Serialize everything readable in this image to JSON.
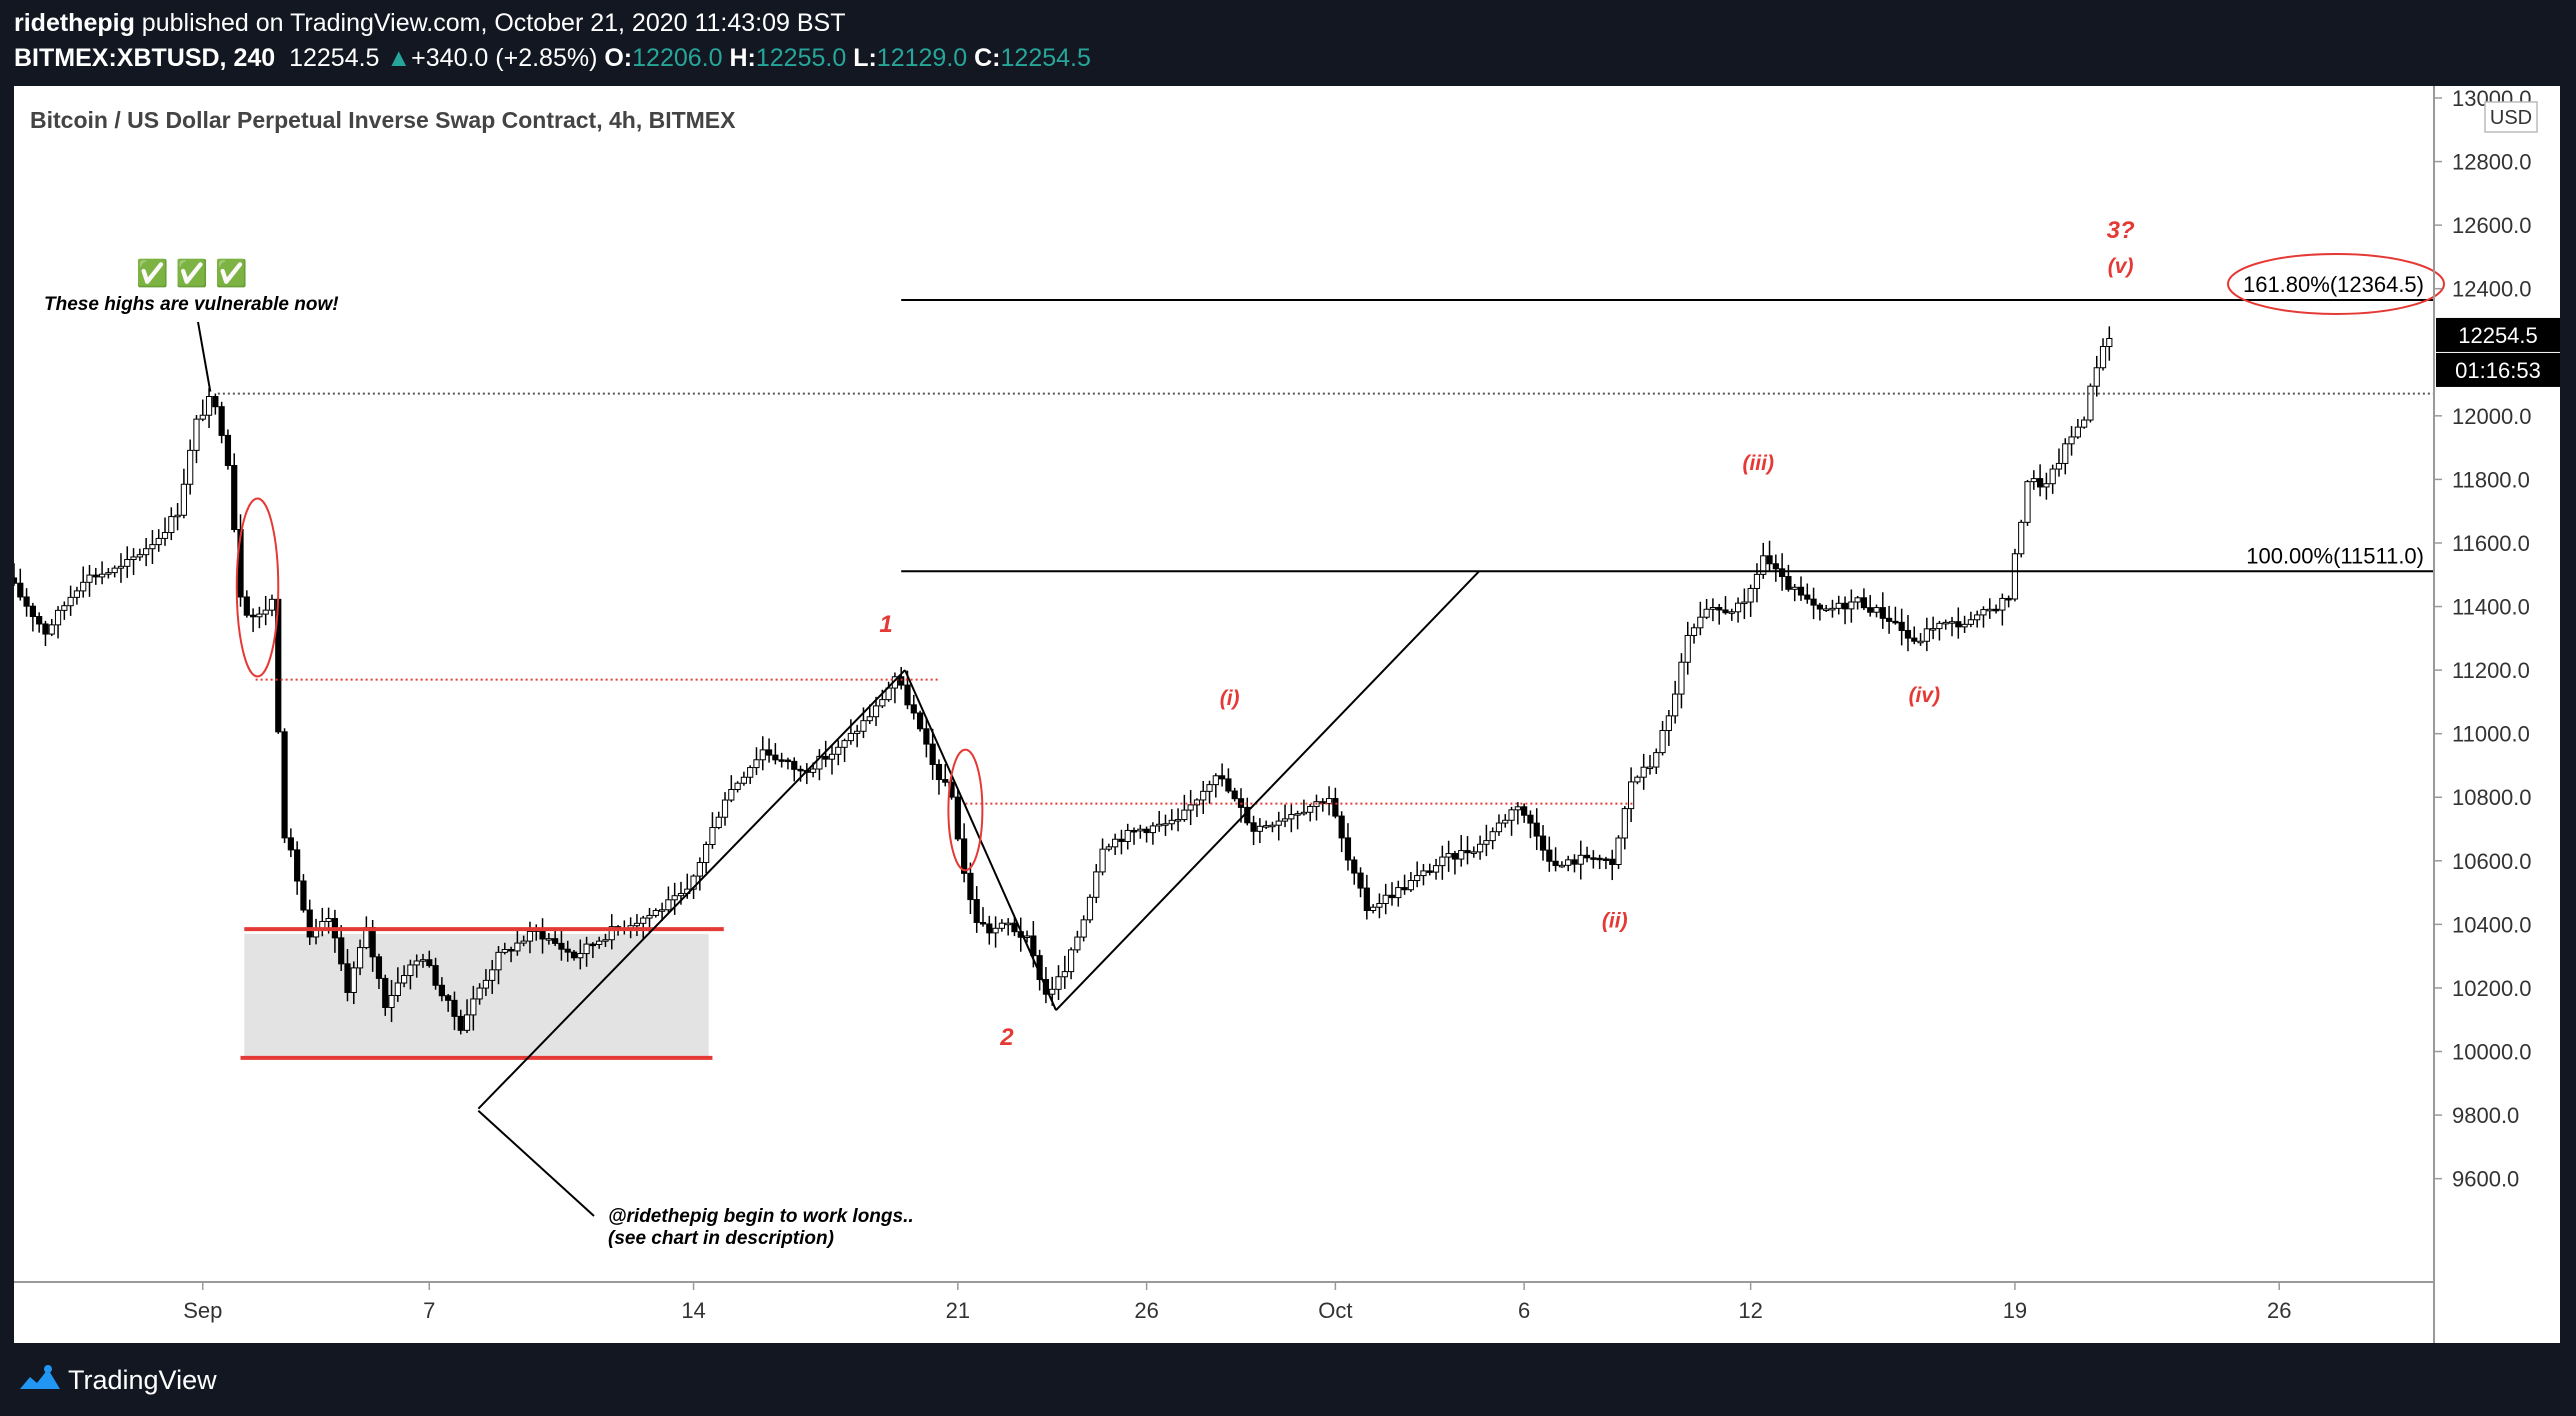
{
  "header": {
    "author": "ridethepig",
    "published_text": "published on TradingView.com, October 21, 2020 11:43:09 BST",
    "symbol": "BITMEX:XBTUSD, 240",
    "last_price": "12254.5",
    "change_arrow": "▲",
    "change": "+340.0 (+2.85%)",
    "o_label": "O:",
    "o_value": "12206.0",
    "h_label": "H:",
    "h_value": "12255.0",
    "l_label": "L:",
    "l_value": "12129.0",
    "c_label": "C:",
    "c_value": "12254.5"
  },
  "footer": {
    "brand": "TradingView"
  },
  "chart_data": {
    "type": "candlestick",
    "title": "Bitcoin / US Dollar Perpetual Inverse Swap Contract, 4h, BITMEX",
    "currency": "USD",
    "y_range": [
      9300,
      13000
    ],
    "y_ticks": [
      "13000.0",
      "12800.0",
      "12600.0",
      "12400.0",
      "12000.0",
      "11800.0",
      "11600.0",
      "11400.0",
      "11200.0",
      "11000.0",
      "10800.0",
      "10600.0",
      "10400.0",
      "10200.0",
      "10000.0",
      "9800.0",
      "9600.0"
    ],
    "x_ticks": [
      {
        "label": "Sep",
        "day": 1
      },
      {
        "label": "7",
        "day": 7
      },
      {
        "label": "14",
        "day": 14
      },
      {
        "label": "21",
        "day": 21
      },
      {
        "label": "26",
        "day": 26
      },
      {
        "label": "Oct",
        "day": 31
      },
      {
        "label": "6",
        "day": 36
      },
      {
        "label": "12",
        "day": 42
      },
      {
        "label": "19",
        "day": 49
      },
      {
        "label": "26",
        "day": 56
      }
    ],
    "x_range_days": [
      -4,
      60.1
    ],
    "price_label": "12254.5",
    "countdown": "01:16:53",
    "key_prices": [
      {
        "day": -4,
        "price": 11490
      },
      {
        "day": -3,
        "price": 11320
      },
      {
        "day": -2,
        "price": 11490
      },
      {
        "day": -1,
        "price": 11520
      },
      {
        "day": 0,
        "price": 11620
      },
      {
        "day": 0.5,
        "price": 11700
      },
      {
        "day": 1,
        "price": 11980
      },
      {
        "day": 1.4,
        "price": 12060
      },
      {
        "day": 1.8,
        "price": 11900
      },
      {
        "day": 2.2,
        "price": 11400
      },
      {
        "day": 2.6,
        "price": 11360
      },
      {
        "day": 3,
        "price": 11420
      },
      {
        "day": 3.3,
        "price": 10700
      },
      {
        "day": 3.6,
        "price": 10580
      },
      {
        "day": 4,
        "price": 10350
      },
      {
        "day": 4.5,
        "price": 10420
      },
      {
        "day": 5,
        "price": 10200
      },
      {
        "day": 5.5,
        "price": 10380
      },
      {
        "day": 6,
        "price": 10150
      },
      {
        "day": 6.5,
        "price": 10250
      },
      {
        "day": 7,
        "price": 10300
      },
      {
        "day": 7.5,
        "price": 10180
      },
      {
        "day": 8,
        "price": 10080
      },
      {
        "day": 8.5,
        "price": 10200
      },
      {
        "day": 9,
        "price": 10300
      },
      {
        "day": 10,
        "price": 10380
      },
      {
        "day": 11,
        "price": 10300
      },
      {
        "day": 12,
        "price": 10380
      },
      {
        "day": 13,
        "price": 10430
      },
      {
        "day": 14,
        "price": 10500
      },
      {
        "day": 15,
        "price": 10800
      },
      {
        "day": 16,
        "price": 10950
      },
      {
        "day": 17,
        "price": 10880
      },
      {
        "day": 18,
        "price": 10950
      },
      {
        "day": 19,
        "price": 11080
      },
      {
        "day": 19.5,
        "price": 11180
      },
      {
        "day": 20,
        "price": 11060
      },
      {
        "day": 20.5,
        "price": 10900
      },
      {
        "day": 21,
        "price": 10800
      },
      {
        "day": 21.3,
        "price": 10580
      },
      {
        "day": 21.6,
        "price": 10420
      },
      {
        "day": 22,
        "price": 10380
      },
      {
        "day": 22.5,
        "price": 10400
      },
      {
        "day": 23,
        "price": 10350
      },
      {
        "day": 23.5,
        "price": 10180
      },
      {
        "day": 24,
        "price": 10250
      },
      {
        "day": 24.5,
        "price": 10420
      },
      {
        "day": 25,
        "price": 10650
      },
      {
        "day": 26,
        "price": 10700
      },
      {
        "day": 27,
        "price": 10720
      },
      {
        "day": 28,
        "price": 10880
      },
      {
        "day": 29,
        "price": 10700
      },
      {
        "day": 30,
        "price": 10750
      },
      {
        "day": 31,
        "price": 10800
      },
      {
        "day": 31.5,
        "price": 10600
      },
      {
        "day": 32,
        "price": 10450
      },
      {
        "day": 33,
        "price": 10520
      },
      {
        "day": 34,
        "price": 10600
      },
      {
        "day": 35,
        "price": 10650
      },
      {
        "day": 36,
        "price": 10780
      },
      {
        "day": 37,
        "price": 10580
      },
      {
        "day": 38,
        "price": 10620
      },
      {
        "day": 38.5,
        "price": 10580
      },
      {
        "day": 39,
        "price": 10850
      },
      {
        "day": 39.5,
        "price": 10900
      },
      {
        "day": 40,
        "price": 11050
      },
      {
        "day": 40.5,
        "price": 11300
      },
      {
        "day": 41,
        "price": 11380
      },
      {
        "day": 42,
        "price": 11400
      },
      {
        "day": 42.5,
        "price": 11560
      },
      {
        "day": 43,
        "price": 11480
      },
      {
        "day": 44,
        "price": 11380
      },
      {
        "day": 45,
        "price": 11420
      },
      {
        "day": 46,
        "price": 11350
      },
      {
        "day": 46.5,
        "price": 11280
      },
      {
        "day": 47,
        "price": 11340
      },
      {
        "day": 48,
        "price": 11350
      },
      {
        "day": 49,
        "price": 11430
      },
      {
        "day": 49.5,
        "price": 11800
      },
      {
        "day": 50,
        "price": 11780
      },
      {
        "day": 50.5,
        "price": 11900
      },
      {
        "day": 51,
        "price": 12000
      },
      {
        "day": 51.3,
        "price": 12150
      },
      {
        "day": 51.6,
        "price": 12254.5
      }
    ],
    "fib_levels": [
      {
        "label": "161.80%(12364.5)",
        "price": 12364.5,
        "from_day": 19.5
      },
      {
        "label": "100.00%(11511.0)",
        "price": 11511.0,
        "from_day": 19.5
      }
    ],
    "dotted_lines": [
      {
        "price": 12070,
        "from_day": 1.4,
        "to_day": 60.1,
        "color": "#555555"
      },
      {
        "price": 11170,
        "from_day": 2.4,
        "to_day": 20.5,
        "color": "#e53935"
      },
      {
        "price": 10780,
        "from_day": 21.2,
        "to_day": 38.9,
        "color": "#e53935"
      }
    ],
    "range_box": {
      "from_day": 2.1,
      "to_day": 14.4,
      "top": 10370,
      "bottom": 9980
    },
    "red_levels": [
      {
        "price": 10385,
        "from_day": 2.1,
        "to_day": 14.8
      },
      {
        "price": 9980,
        "from_day": 2.0,
        "to_day": 14.5
      }
    ],
    "ellipses": [
      {
        "day": 2.45,
        "price": 11460,
        "rx_days": 0.55,
        "ry_price": 280
      },
      {
        "day": 21.2,
        "price": 10760,
        "rx_days": 0.45,
        "ry_price": 190
      }
    ],
    "trend_lines": [
      {
        "points": [
          [
            8.3,
            9820
          ],
          [
            19.6,
            11200
          ]
        ]
      },
      {
        "points": [
          [
            19.6,
            11200
          ],
          [
            23.6,
            10130
          ]
        ]
      },
      {
        "points": [
          [
            23.6,
            10130
          ],
          [
            34.8,
            11510
          ]
        ]
      }
    ],
    "wave_labels": [
      {
        "text": "1",
        "day": 19.1,
        "price": 11320,
        "size": 24
      },
      {
        "text": "2",
        "day": 22.3,
        "price": 10020,
        "size": 24
      },
      {
        "text": "(i)",
        "day": 28.2,
        "price": 11090,
        "size": 21
      },
      {
        "text": "(ii)",
        "day": 38.4,
        "price": 10390,
        "size": 21
      },
      {
        "text": "(iii)",
        "day": 42.2,
        "price": 11830,
        "size": 21
      },
      {
        "text": "(iv)",
        "day": 46.6,
        "price": 11100,
        "size": 21
      },
      {
        "text": "(v)",
        "day": 51.8,
        "price": 12450,
        "size": 21
      },
      {
        "text": "3?",
        "day": 51.8,
        "price": 12560,
        "size": 24
      }
    ],
    "annotations": {
      "checks": "✅ ✅ ✅",
      "highs_note": "These highs are vulnerable now!",
      "longs_note_1": "@ridethepig begin to work longs..",
      "longs_note_2": "(see chart in description)"
    },
    "colors": {
      "candle_up": "#ffffff",
      "candle_down": "#000000",
      "annotation_red": "#e53935",
      "label_black": "#000000"
    }
  }
}
